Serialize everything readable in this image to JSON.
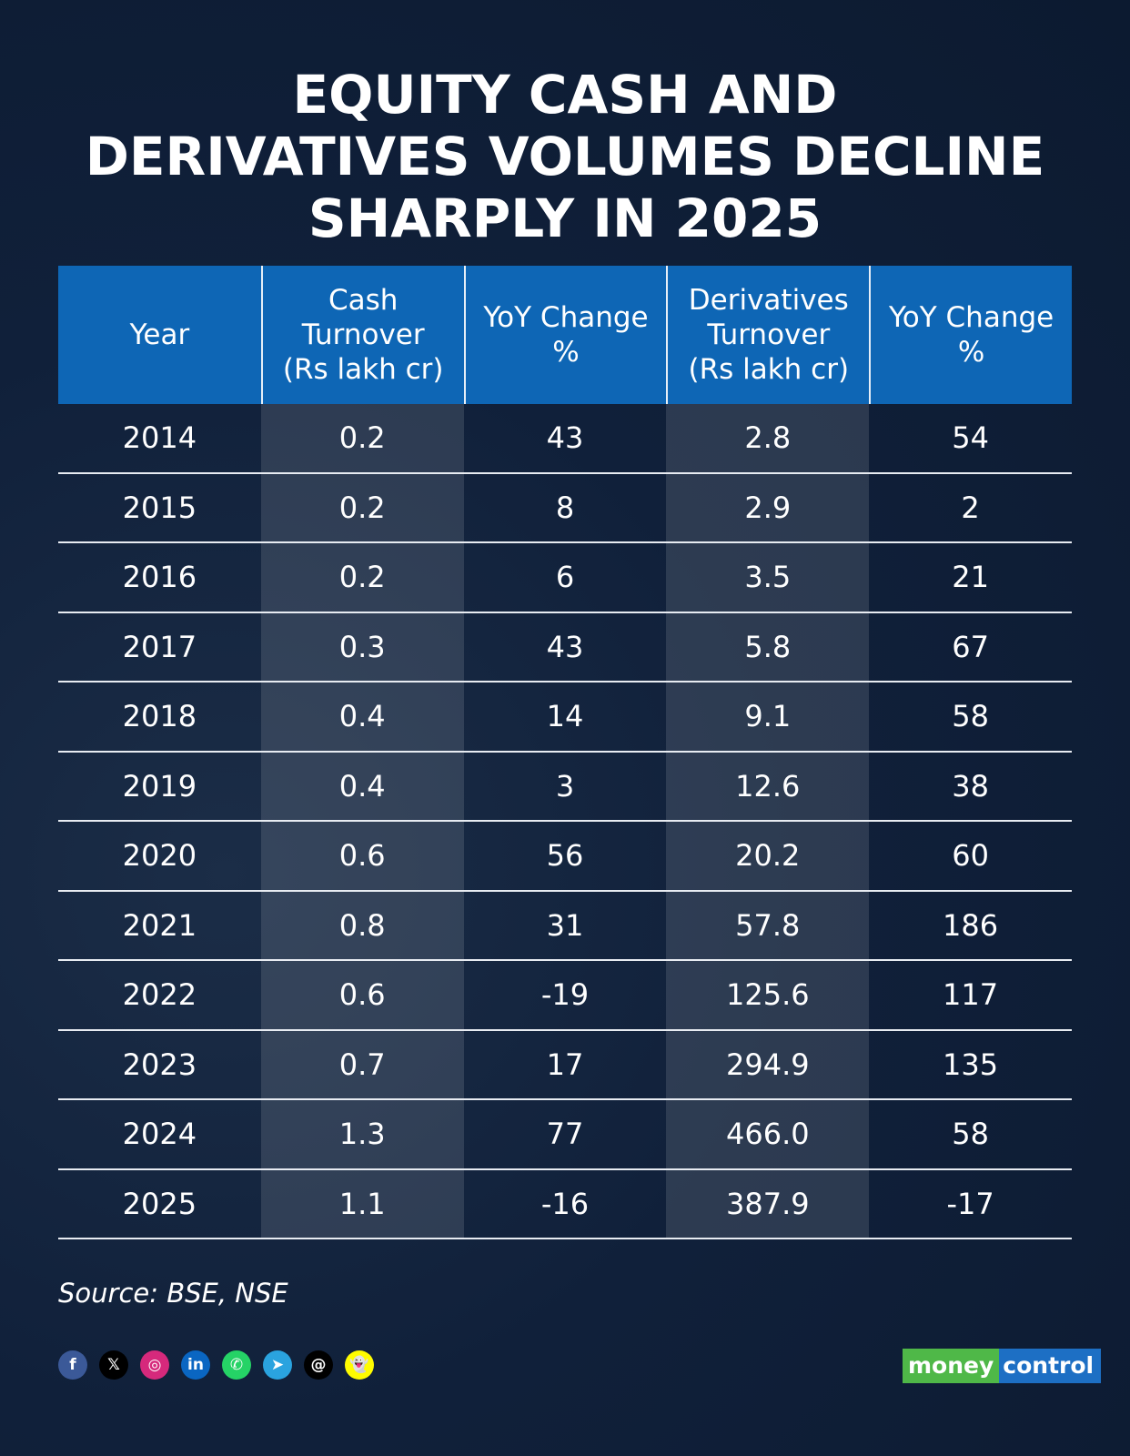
{
  "title": {
    "line1": "EQUITY CASH AND",
    "line2": "DERIVATIVES VOLUMES DECLINE",
    "line3": "SHARPLY IN 2025"
  },
  "table": {
    "headers": [
      "Year",
      "Cash\nTurnover\n(Rs lakh cr)",
      "YoY Change\n%",
      "Derivatives\nTurnover\n(Rs lakh cr)",
      "YoY Change\n%"
    ],
    "rows": [
      [
        "2014",
        "0.2",
        "43",
        "2.8",
        "54"
      ],
      [
        "2015",
        "0.2",
        "8",
        "2.9",
        "2"
      ],
      [
        "2016",
        "0.2",
        "6",
        "3.5",
        "21"
      ],
      [
        "2017",
        "0.3",
        "43",
        "5.8",
        "67"
      ],
      [
        "2018",
        "0.4",
        "14",
        "9.1",
        "58"
      ],
      [
        "2019",
        "0.4",
        "3",
        "12.6",
        "38"
      ],
      [
        "2020",
        "0.6",
        "56",
        "20.2",
        "60"
      ],
      [
        "2021",
        "0.8",
        "31",
        "57.8",
        "186"
      ],
      [
        "2022",
        "0.6",
        "-19",
        "125.6",
        "117"
      ],
      [
        "2023",
        "0.7",
        "17",
        "294.9",
        "135"
      ],
      [
        "2024",
        "1.3",
        "77",
        "466.0",
        "58"
      ],
      [
        "2025",
        "1.1",
        "-16",
        "387.9",
        "-17"
      ]
    ]
  },
  "source": "Source: BSE, NSE",
  "social": [
    {
      "icon": "facebook-icon",
      "glyph": "f",
      "color": "#3b5998"
    },
    {
      "icon": "x-icon",
      "glyph": "𝕏",
      "color": "#000000"
    },
    {
      "icon": "instagram-icon",
      "glyph": "◎",
      "color": "#d6297c"
    },
    {
      "icon": "linkedin-icon",
      "glyph": "in",
      "color": "#0a66c2"
    },
    {
      "icon": "whatsapp-icon",
      "glyph": "✆",
      "color": "#25d366"
    },
    {
      "icon": "telegram-icon",
      "glyph": "➤",
      "color": "#2aa3df"
    },
    {
      "icon": "threads-icon",
      "glyph": "@",
      "color": "#000000"
    },
    {
      "icon": "snapchat-icon",
      "glyph": "👻",
      "color": "#fffc00"
    }
  ],
  "logo": {
    "part1": "money",
    "part2": "control"
  }
}
